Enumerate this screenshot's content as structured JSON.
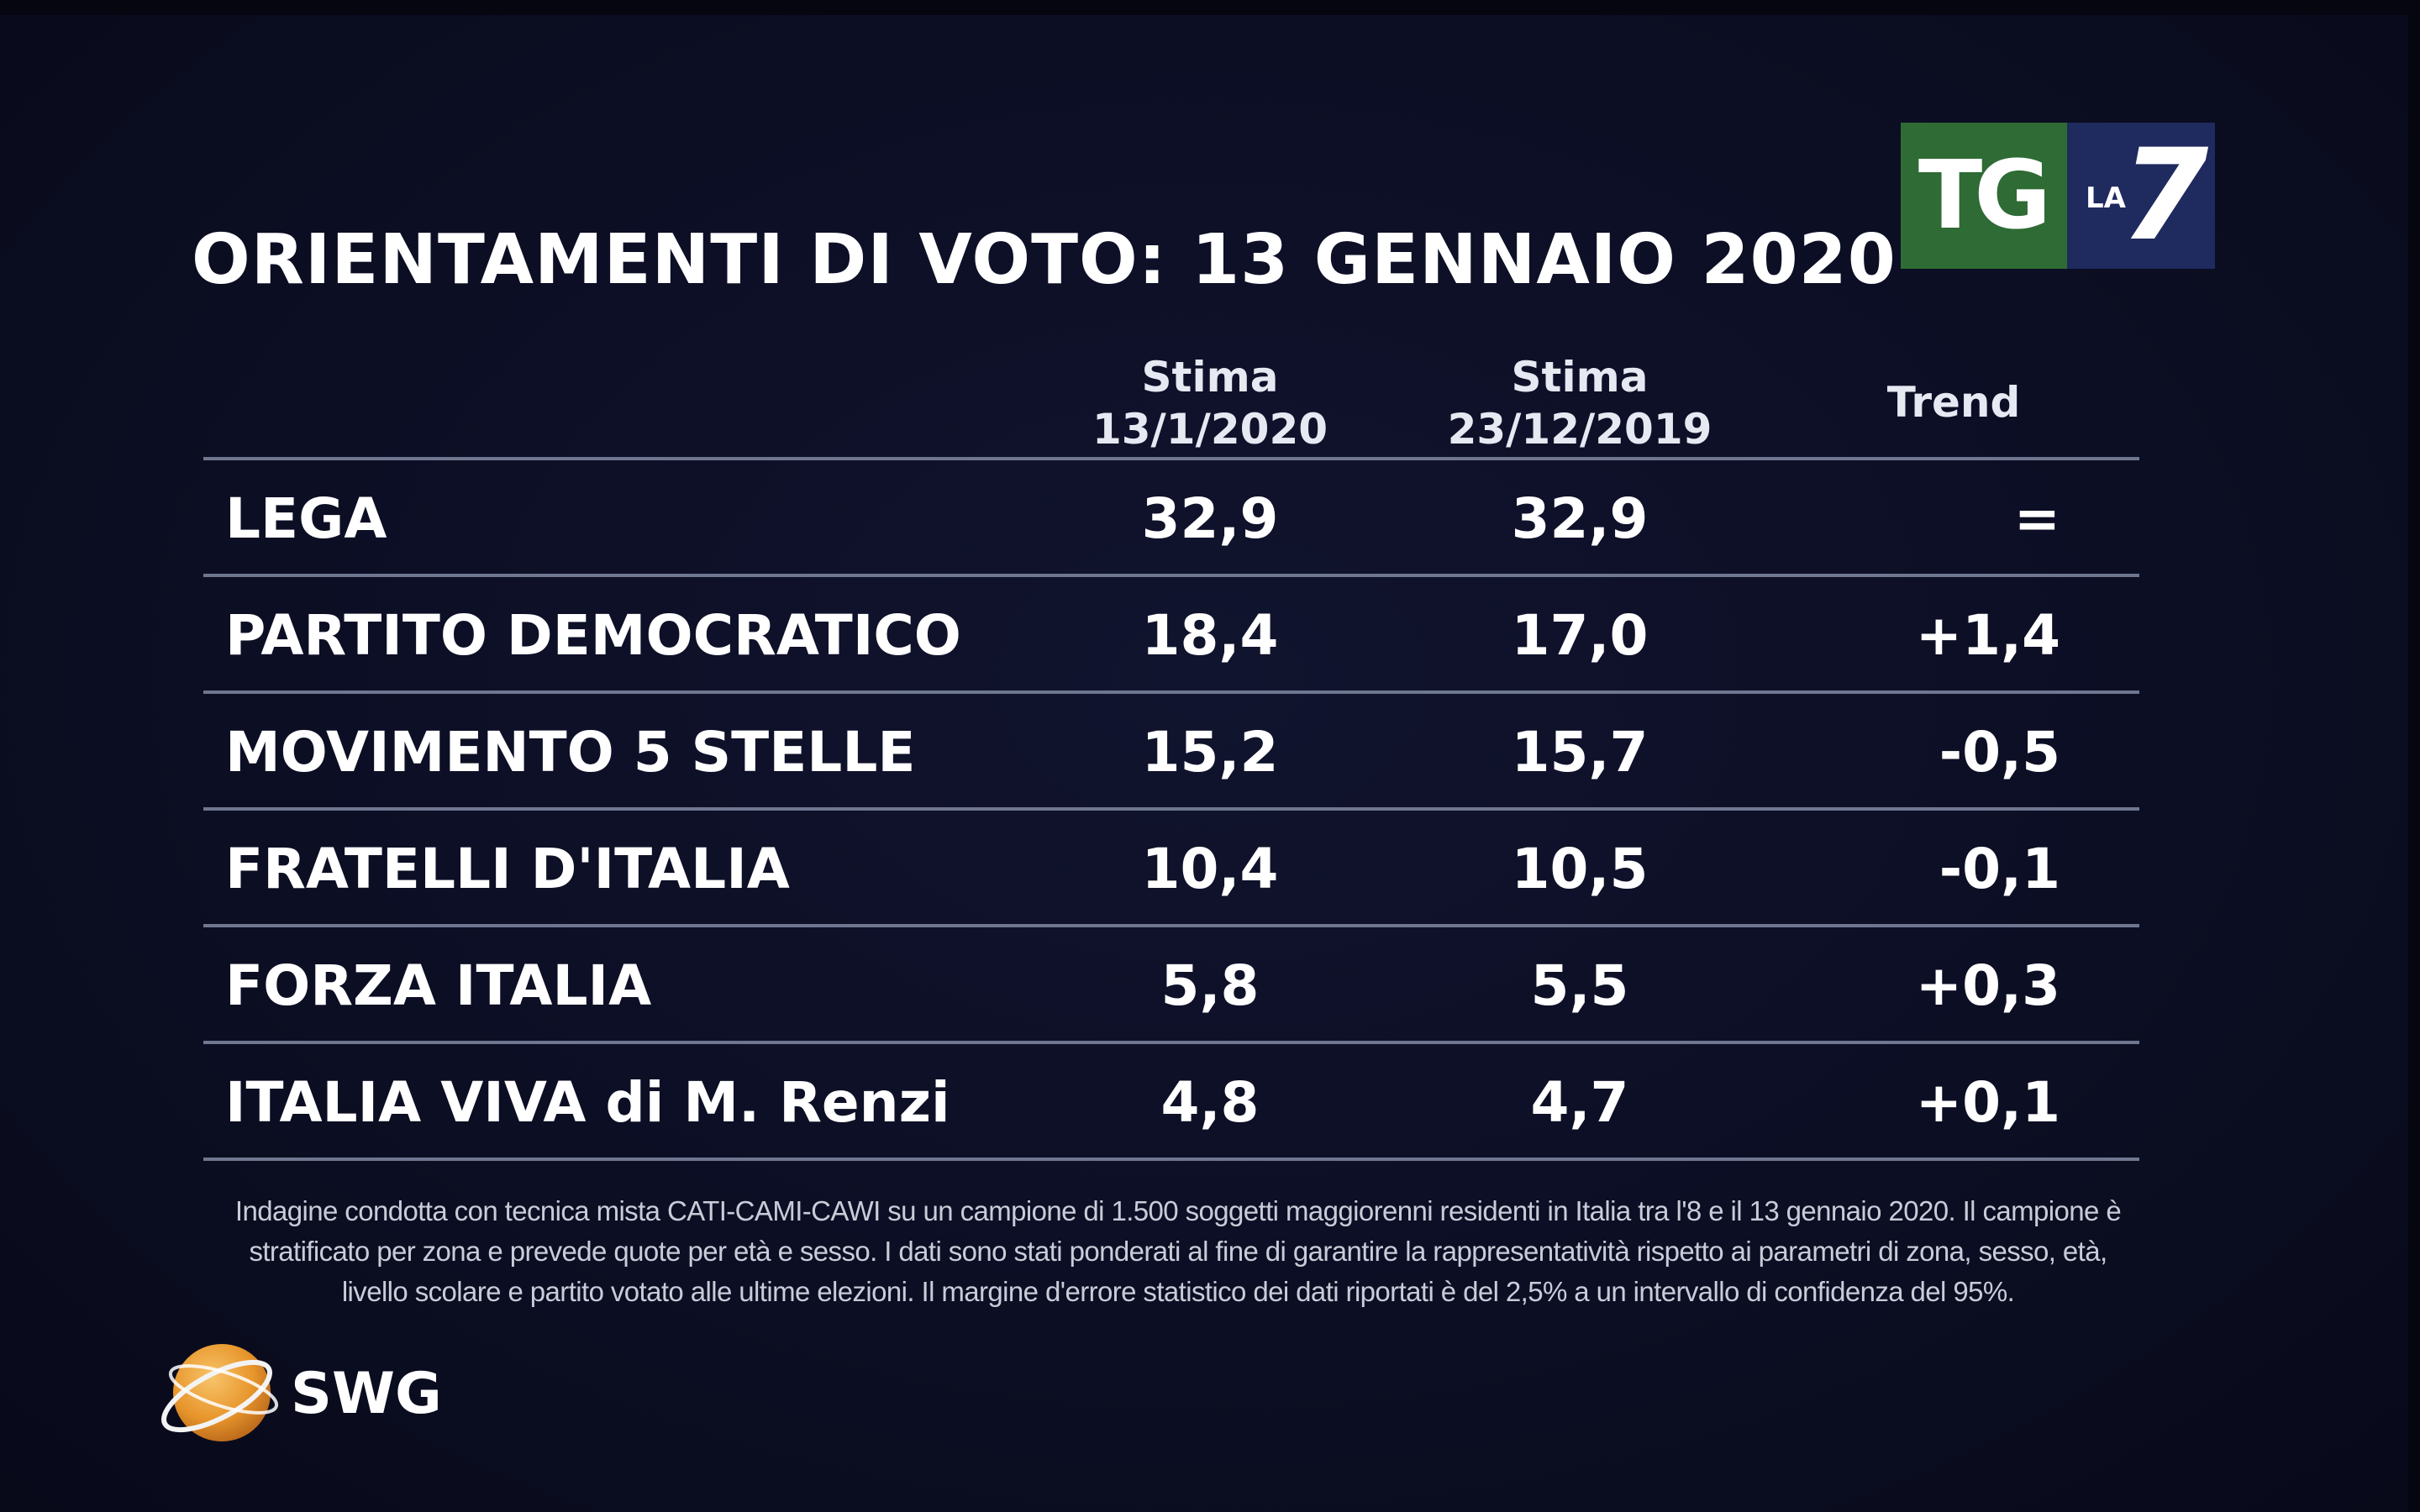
{
  "broadcaster_logo": {
    "main": "TG",
    "sub": "LA",
    "number": "7"
  },
  "title": "ORIENTAMENTI DI VOTO: 13 GENNAIO 2020",
  "table": {
    "headers": {
      "col1": [
        "Stima",
        "13/1/2020"
      ],
      "col2": [
        "Stima",
        "23/12/2019"
      ],
      "trend": "Trend"
    },
    "rows": [
      {
        "party": "LEGA",
        "v1": "32,9",
        "v2": "32,9",
        "trend": "="
      },
      {
        "party": "PARTITO DEMOCRATICO",
        "v1": "18,4",
        "v2": "17,0",
        "trend": "+1,4"
      },
      {
        "party": "MOVIMENTO 5 STELLE",
        "v1": "15,2",
        "v2": "15,7",
        "trend": "-0,5"
      },
      {
        "party": "FRATELLI D'ITALIA",
        "v1": "10,4",
        "v2": "10,5",
        "trend": "-0,1"
      },
      {
        "party": "FORZA ITALIA",
        "v1": "5,8",
        "v2": "5,5",
        "trend": "+0,3"
      },
      {
        "party": "ITALIA VIVA di M. Renzi",
        "v1": "4,8",
        "v2": "4,7",
        "trend": "+0,1"
      }
    ]
  },
  "footnote": [
    "Indagine condotta con tecnica mista CATI-CAMI-CAWI su un campione di 1.500 soggetti maggiorenni residenti in Italia tra l'8 e il 13 gennaio 2020. Il campione è",
    "stratificato per zona e prevede quote per età e sesso. I dati sono stati ponderati al fine di garantire la rappresentatività rispetto ai parametri di zona, sesso, età,",
    "livello scolare e partito votato alle ultime elezioni. Il margine d'errore statistico dei dati riportati è del 2,5% a un intervallo di confidenza del 95%."
  ],
  "source_logo": {
    "text": "SWG",
    "icon": "globe-icon"
  },
  "colors": {
    "background": "#0b0d21",
    "divider": "#6f7790",
    "logo_green": "#2f6b35",
    "logo_blue": "#1f2a5e",
    "swg_orange": "#e8962c"
  },
  "chart_data": {
    "type": "table",
    "title": "ORIENTAMENTI DI VOTO: 13 GENNAIO 2020",
    "columns": [
      "",
      "Stima 13/1/2020",
      "Stima 23/12/2019",
      "Trend"
    ],
    "categories": [
      "LEGA",
      "PARTITO DEMOCRATICO",
      "MOVIMENTO 5 STELLE",
      "FRATELLI D'ITALIA",
      "FORZA ITALIA",
      "ITALIA VIVA di M. Renzi"
    ],
    "series": [
      {
        "name": "Stima 13/1/2020",
        "values": [
          32.9,
          18.4,
          15.2,
          10.4,
          5.8,
          4.8
        ]
      },
      {
        "name": "Stima 23/12/2019",
        "values": [
          32.9,
          17.0,
          15.7,
          10.5,
          5.5,
          4.7
        ]
      },
      {
        "name": "Trend",
        "values": [
          0,
          1.4,
          -0.5,
          -0.1,
          0.3,
          0.1
        ]
      }
    ]
  }
}
